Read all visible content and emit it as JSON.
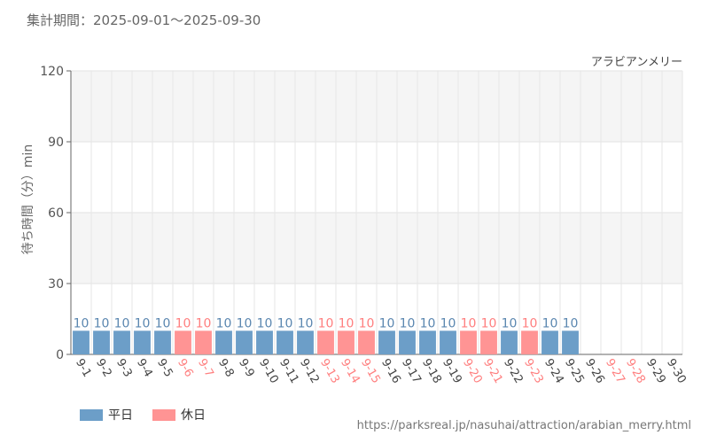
{
  "header": {
    "period_label": "集計期間：2025-09-01～2025-09-30"
  },
  "colors": {
    "weekday": "#6c9ec8",
    "holiday": "#ff9494",
    "holiday_label": "#ff7f7f",
    "weekday_label": "#444444",
    "grid_band": "#f5f5f5"
  },
  "legend": [
    {
      "label": "平日",
      "color": "#6c9ec8"
    },
    {
      "label": "休日",
      "color": "#ff9494"
    }
  ],
  "source_url": "https://parksreal.jp/nasuhai/attraction/arabian_merry.html",
  "chart_data": {
    "type": "bar",
    "title": "アラビアンメリー",
    "ylabel": "待ち時間（分）min",
    "xlabel": "",
    "ylim": [
      0,
      120
    ],
    "yticks": [
      0,
      30,
      60,
      90,
      120
    ],
    "grid": true,
    "legend_position": "bottom-left",
    "categories": [
      "9-1",
      "9-2",
      "9-3",
      "9-4",
      "9-5",
      "9-6",
      "9-7",
      "9-8",
      "9-9",
      "9-10",
      "9-11",
      "9-12",
      "9-13",
      "9-14",
      "9-15",
      "9-16",
      "9-17",
      "9-18",
      "9-19",
      "9-20",
      "9-21",
      "9-22",
      "9-23",
      "9-24",
      "9-25",
      "9-26",
      "9-27",
      "9-28",
      "9-29",
      "9-30"
    ],
    "day_type": [
      "weekday",
      "weekday",
      "weekday",
      "weekday",
      "weekday",
      "holiday",
      "holiday",
      "weekday",
      "weekday",
      "weekday",
      "weekday",
      "weekday",
      "holiday",
      "holiday",
      "holiday",
      "weekday",
      "weekday",
      "weekday",
      "weekday",
      "holiday",
      "holiday",
      "weekday",
      "holiday",
      "weekday",
      "weekday",
      "weekday",
      "holiday",
      "holiday",
      "weekday",
      "weekday"
    ],
    "values": [
      10,
      10,
      10,
      10,
      10,
      10,
      10,
      10,
      10,
      10,
      10,
      10,
      10,
      10,
      10,
      10,
      10,
      10,
      10,
      10,
      10,
      10,
      10,
      10,
      10,
      null,
      null,
      null,
      null,
      null
    ]
  }
}
